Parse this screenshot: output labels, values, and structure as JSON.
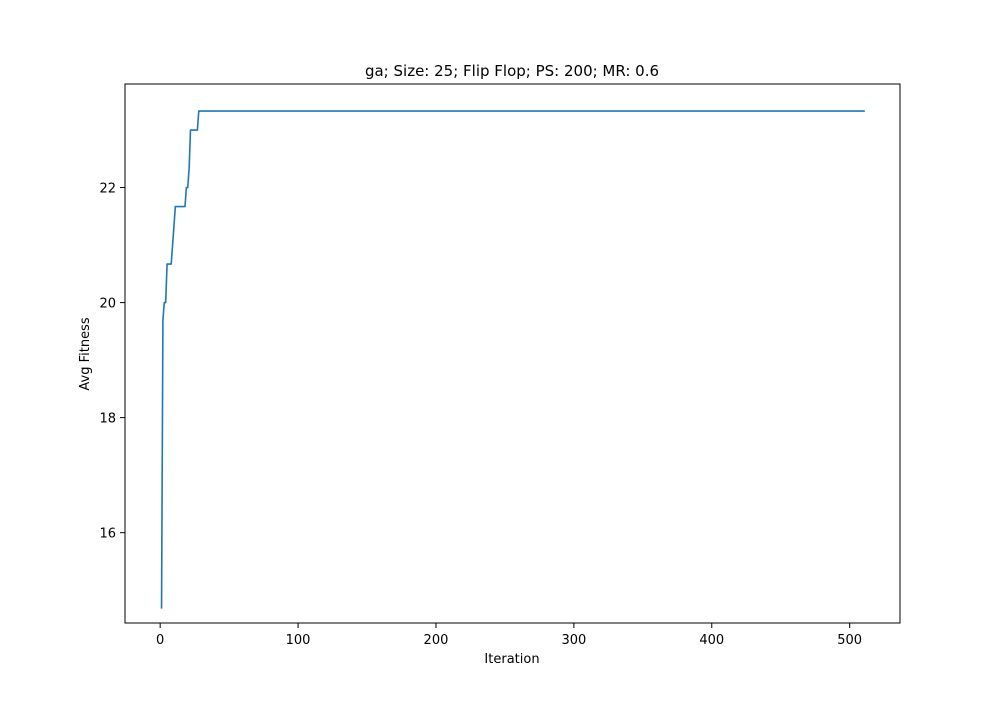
{
  "chart_data": {
    "type": "line",
    "title": "ga; Size: 25; Flip Flop; PS: 200; MR: 0.6",
    "xlabel": "Iteration",
    "ylabel": "Avg Fitness",
    "xlim": [
      -25.5,
      536.5
    ],
    "ylim": [
      14.43,
      23.8
    ],
    "xticks": [
      0,
      100,
      200,
      300,
      400,
      500
    ],
    "yticks": [
      16,
      18,
      20,
      22
    ],
    "grid": false,
    "legend": "none",
    "series": [
      {
        "color": "#1f77b4",
        "x": [
          1,
          2,
          2.5,
          3,
          3.5,
          4,
          5,
          6,
          7,
          8,
          9,
          10,
          11,
          12,
          13,
          14,
          15,
          16,
          17,
          18,
          19,
          20,
          21,
          22,
          23,
          24,
          25,
          26,
          27,
          28,
          29,
          30,
          60,
          100,
          200,
          300,
          400,
          500,
          511
        ],
        "y": [
          14.68,
          19.7,
          19.85,
          20.0,
          20.0,
          20.0,
          20.67,
          20.67,
          20.67,
          20.67,
          21.0,
          21.33,
          21.67,
          21.67,
          21.67,
          21.67,
          21.67,
          21.67,
          21.67,
          21.67,
          22.0,
          22.0,
          22.33,
          23.0,
          23.0,
          23.0,
          23.0,
          23.0,
          23.0,
          23.33,
          23.33,
          23.33,
          23.33,
          23.33,
          23.33,
          23.33,
          23.33,
          23.33,
          23.33
        ]
      }
    ]
  }
}
